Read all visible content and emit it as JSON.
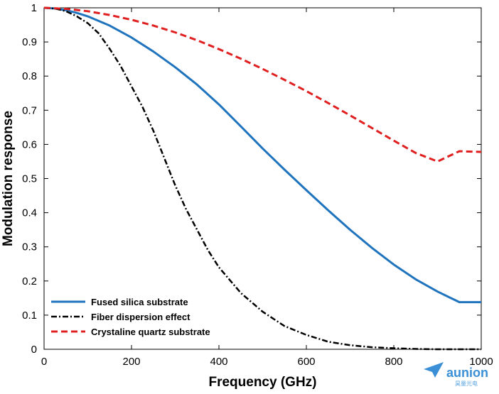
{
  "chart_data": {
    "type": "line",
    "xlabel": "Frequency (GHz)",
    "ylabel": "Modulation response",
    "xlim": [
      0,
      1000
    ],
    "ylim": [
      0,
      1
    ],
    "xticks": [
      0,
      200,
      400,
      600,
      800,
      1000
    ],
    "yticks": [
      0,
      0.1,
      0.2,
      0.3,
      0.4,
      0.5,
      0.6,
      0.7,
      0.8,
      0.9,
      1
    ],
    "grid": false,
    "legend_position": "bottom-left",
    "series": [
      {
        "name": "Fused silica substrate",
        "color": "#1f74bd",
        "style": "solid",
        "x": [
          0,
          25,
          50,
          75,
          100,
          150,
          200,
          250,
          300,
          350,
          400,
          450,
          500,
          550,
          600,
          650,
          700,
          750,
          800,
          850,
          900,
          950,
          1000
        ],
        "y": [
          1.0,
          0.998,
          0.993,
          0.985,
          0.975,
          0.948,
          0.913,
          0.872,
          0.826,
          0.775,
          0.717,
          0.653,
          0.588,
          0.526,
          0.466,
          0.407,
          0.35,
          0.297,
          0.248,
          0.205,
          0.169,
          0.138,
          0.138
        ]
      },
      {
        "name": "Fiber dispersion effect",
        "color": "#000000",
        "style": "dashdot",
        "x": [
          0,
          25,
          50,
          75,
          100,
          125,
          150,
          175,
          200,
          225,
          250,
          275,
          300,
          325,
          350,
          375,
          400,
          450,
          500,
          550,
          600,
          650,
          700,
          750,
          800,
          850,
          900,
          950,
          1000
        ],
        "y": [
          1.0,
          0.998,
          0.99,
          0.975,
          0.955,
          0.925,
          0.88,
          0.83,
          0.77,
          0.71,
          0.64,
          0.56,
          0.48,
          0.41,
          0.35,
          0.29,
          0.24,
          0.165,
          0.11,
          0.068,
          0.042,
          0.022,
          0.012,
          0.006,
          0.003,
          0.001,
          0.0,
          0.0,
          0.0
        ]
      },
      {
        "name": "Crystaline quartz substrate",
        "color": "#e02020",
        "style": "dashed",
        "x": [
          0,
          50,
          100,
          150,
          200,
          250,
          300,
          350,
          400,
          450,
          500,
          550,
          600,
          650,
          700,
          750,
          800,
          850,
          900,
          950,
          1000
        ],
        "y": [
          1.0,
          0.997,
          0.99,
          0.979,
          0.965,
          0.948,
          0.928,
          0.905,
          0.879,
          0.851,
          0.821,
          0.789,
          0.756,
          0.721,
          0.685,
          0.648,
          0.611,
          0.575,
          0.55,
          0.58,
          0.578
        ]
      }
    ]
  },
  "watermark": {
    "text": "aunion",
    "subtext": "昊量光电",
    "color": "#3a8fd6"
  }
}
